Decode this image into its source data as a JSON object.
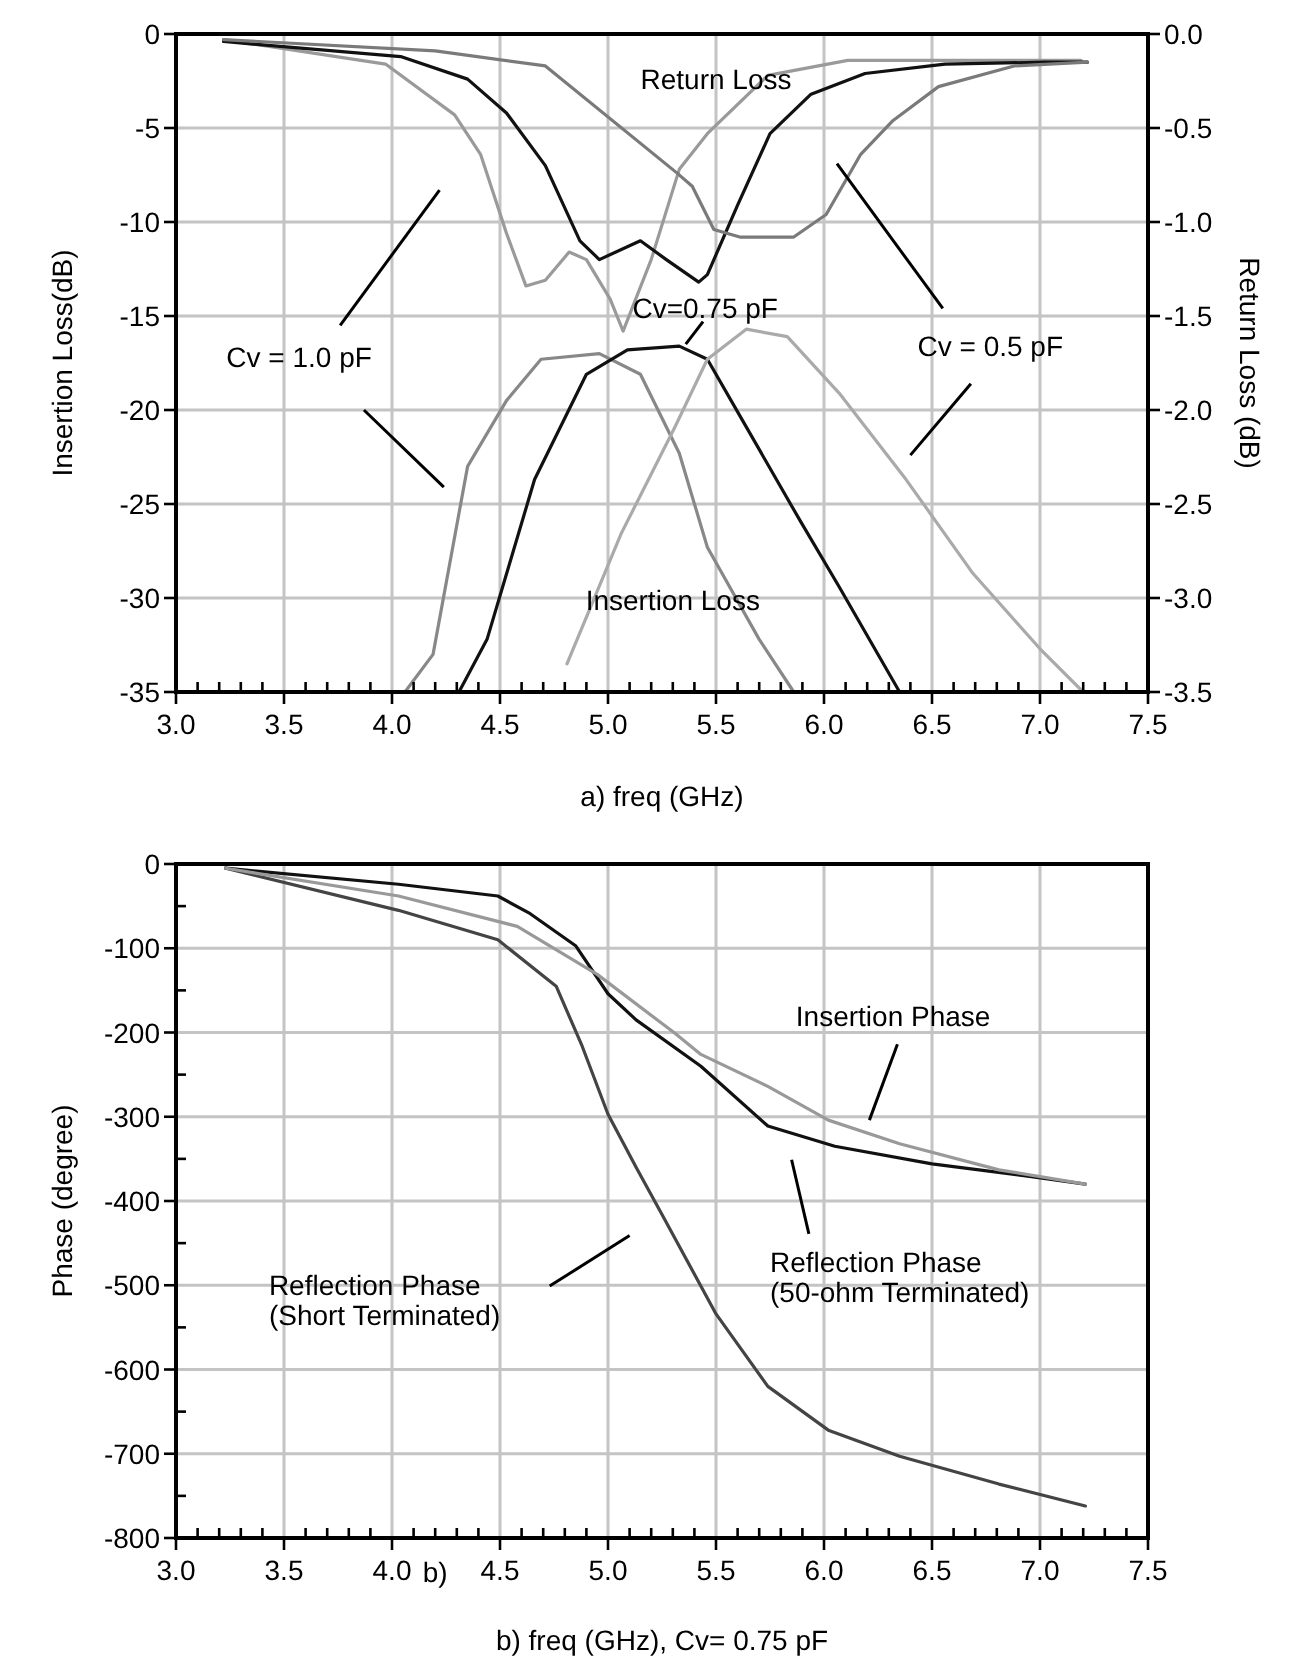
{
  "chart_data": [
    {
      "type": "line",
      "xlabel": "a) freq (GHz)",
      "ylabel": "Insertion Loss(dB)",
      "y2label": "Return Loss (dB)",
      "grid": true,
      "xlim": [
        3,
        7.5
      ],
      "xticks": [
        {
          "value": 3,
          "label": "3.0"
        },
        {
          "value": 3.1,
          "label": null
        },
        {
          "value": 3.2,
          "label": null
        },
        {
          "value": 3.3,
          "label": null
        },
        {
          "value": 3.4,
          "label": null
        },
        {
          "value": 3.5,
          "label": "3.5"
        },
        {
          "value": 3.6,
          "label": null
        },
        {
          "value": 3.7,
          "label": null
        },
        {
          "value": 3.8,
          "label": null
        },
        {
          "value": 3.9,
          "label": null
        },
        {
          "value": 4,
          "label": "4.0"
        },
        {
          "value": 4.1,
          "label": null
        },
        {
          "value": 4.2,
          "label": null
        },
        {
          "value": 4.3,
          "label": null
        },
        {
          "value": 4.4,
          "label": null
        },
        {
          "value": 4.5,
          "label": "4.5"
        },
        {
          "value": 4.6,
          "label": null
        },
        {
          "value": 4.7,
          "label": null
        },
        {
          "value": 4.8,
          "label": null
        },
        {
          "value": 4.9,
          "label": null
        },
        {
          "value": 5,
          "label": "5.0"
        },
        {
          "value": 5.1,
          "label": null
        },
        {
          "value": 5.2,
          "label": null
        },
        {
          "value": 5.3,
          "label": null
        },
        {
          "value": 5.4,
          "label": null
        },
        {
          "value": 5.5,
          "label": "5.5"
        },
        {
          "value": 5.6,
          "label": null
        },
        {
          "value": 5.7,
          "label": null
        },
        {
          "value": 5.8,
          "label": null
        },
        {
          "value": 5.9,
          "label": null
        },
        {
          "value": 6,
          "label": "6.0"
        },
        {
          "value": 6.1,
          "label": null
        },
        {
          "value": 6.2,
          "label": null
        },
        {
          "value": 6.3,
          "label": null
        },
        {
          "value": 6.4,
          "label": null
        },
        {
          "value": 6.5,
          "label": "6.5"
        },
        {
          "value": 6.6,
          "label": null
        },
        {
          "value": 6.7,
          "label": null
        },
        {
          "value": 6.8,
          "label": null
        },
        {
          "value": 6.9,
          "label": null
        },
        {
          "value": 7,
          "label": "7.0"
        },
        {
          "value": 7.1,
          "label": null
        },
        {
          "value": 7.2,
          "label": null
        },
        {
          "value": 7.3,
          "label": null
        },
        {
          "value": 7.4,
          "label": null
        },
        {
          "value": 7.5,
          "label": "7.5"
        }
      ],
      "ylim": [
        -35,
        0
      ],
      "yticks": [
        0,
        -5,
        -10,
        -15,
        -20,
        -25,
        -30,
        -35
      ],
      "y2lim": [
        -3.5,
        0
      ],
      "y2ticks": [
        {
          "value": 0,
          "label": "0.0"
        },
        {
          "value": -0.5,
          "label": "-0.5"
        },
        {
          "value": -1,
          "label": "-1.0"
        },
        {
          "value": -1.5,
          "label": "-1.5"
        },
        {
          "value": -2,
          "label": "-2.0"
        },
        {
          "value": -2.5,
          "label": "-2.5"
        },
        {
          "value": -3,
          "label": "-3.0"
        },
        {
          "value": -3.5,
          "label": "-3.5"
        }
      ],
      "annotations": [
        "Return Loss",
        "Cv=0.75 pF",
        "Cv = 1.0 pF",
        "Cv = 0.5 pF",
        "Insertion Loss"
      ],
      "series": [
        {
          "color": "#888888",
          "x": [
            4.06,
            4.19,
            4.35,
            4.53,
            4.69,
            4.96,
            5.15,
            5.33,
            5.46,
            5.7,
            5.86
          ],
          "values": [
            -35,
            -33,
            -23,
            -19.5,
            -17.3,
            -17,
            -18.1,
            -22.3,
            -27.3,
            -32.2,
            -35
          ]
        },
        {
          "color": "#111111",
          "x": [
            4.31,
            4.44,
            4.66,
            4.9,
            5.09,
            5.33,
            5.46,
            5.64,
            5.89,
            6.07,
            6.35
          ],
          "values": [
            -35,
            -32.2,
            -23.7,
            -18.1,
            -16.8,
            -16.6,
            -17.3,
            -20.9,
            -25.9,
            -29.4,
            -35
          ]
        },
        {
          "color": "#aaaaaa",
          "x": [
            4.81,
            5.06,
            5.31,
            5.46,
            5.64,
            5.83,
            6.07,
            6.38,
            6.69,
            7,
            7.2
          ],
          "values": [
            -33.5,
            -26.6,
            -20.9,
            -17.3,
            -15.7,
            -16.1,
            -19.1,
            -23.7,
            -28.7,
            -32.7,
            -35
          ]
        },
        {
          "axis": "y2",
          "color": "#9a9a9a",
          "x": [
            3.22,
            3.97,
            4.29,
            4.41,
            4.53,
            4.62,
            4.71,
            4.82,
            4.9,
            5.01,
            5.07,
            5.2,
            5.33,
            5.46,
            5.74,
            6.11,
            7.19
          ],
          "values": [
            -0.03,
            -0.16,
            -0.43,
            -0.64,
            -1.06,
            -1.34,
            -1.31,
            -1.16,
            -1.2,
            -1.41,
            -1.58,
            -1.2,
            -0.72,
            -0.53,
            -0.22,
            -0.14,
            -0.14
          ]
        },
        {
          "axis": "y2",
          "color": "#111111",
          "x": [
            3.22,
            4.04,
            4.35,
            4.53,
            4.71,
            4.87,
            4.96,
            5.15,
            5.27,
            5.42,
            5.46,
            5.6,
            5.75,
            5.94,
            6.19,
            6.56,
            7.02,
            7.22
          ],
          "values": [
            -0.04,
            -0.12,
            -0.24,
            -0.42,
            -0.7,
            -1.1,
            -1.2,
            -1.1,
            -1.2,
            -1.32,
            -1.28,
            -0.91,
            -0.53,
            -0.32,
            -0.21,
            -0.16,
            -0.15,
            -0.15
          ]
        },
        {
          "axis": "y2",
          "color": "#7a7a7a",
          "x": [
            3.22,
            4.2,
            4.71,
            5.32,
            5.39,
            5.49,
            5.61,
            5.86,
            6.01,
            6.17,
            6.32,
            6.53,
            6.88,
            7.22
          ],
          "values": [
            -0.03,
            -0.09,
            -0.17,
            -0.74,
            -0.81,
            -1.04,
            -1.08,
            -1.08,
            -0.96,
            -0.64,
            -0.46,
            -0.28,
            -0.17,
            -0.15
          ]
        }
      ]
    },
    {
      "type": "line",
      "xlabel": "b) freq (GHz), Cv= 0.75 pF",
      "ylabel": "Phase (degree)",
      "grid": true,
      "xlim": [
        3,
        7.5
      ],
      "xticks": [
        {
          "value": 3,
          "label": "3.0"
        },
        {
          "value": 3.1,
          "label": null
        },
        {
          "value": 3.2,
          "label": null
        },
        {
          "value": 3.3,
          "label": null
        },
        {
          "value": 3.4,
          "label": null
        },
        {
          "value": 3.5,
          "label": "3.5"
        },
        {
          "value": 3.6,
          "label": null
        },
        {
          "value": 3.7,
          "label": null
        },
        {
          "value": 3.8,
          "label": null
        },
        {
          "value": 3.9,
          "label": null
        },
        {
          "value": 4,
          "label": "4.0"
        },
        {
          "value": 4.1,
          "label": null
        },
        {
          "value": 4.2,
          "label": null
        },
        {
          "value": 4.3,
          "label": null
        },
        {
          "value": 4.4,
          "label": null
        },
        {
          "value": 4.5,
          "label": "4.5"
        },
        {
          "value": 4.6,
          "label": null
        },
        {
          "value": 4.7,
          "label": null
        },
        {
          "value": 4.8,
          "label": null
        },
        {
          "value": 4.9,
          "label": null
        },
        {
          "value": 5,
          "label": "5.0"
        },
        {
          "value": 5.1,
          "label": null
        },
        {
          "value": 5.2,
          "label": null
        },
        {
          "value": 5.3,
          "label": null
        },
        {
          "value": 5.4,
          "label": null
        },
        {
          "value": 5.5,
          "label": "5.5"
        },
        {
          "value": 5.6,
          "label": null
        },
        {
          "value": 5.7,
          "label": null
        },
        {
          "value": 5.8,
          "label": null
        },
        {
          "value": 5.9,
          "label": null
        },
        {
          "value": 6,
          "label": "6.0"
        },
        {
          "value": 6.1,
          "label": null
        },
        {
          "value": 6.2,
          "label": null
        },
        {
          "value": 6.3,
          "label": null
        },
        {
          "value": 6.4,
          "label": null
        },
        {
          "value": 6.5,
          "label": "6.5"
        },
        {
          "value": 6.6,
          "label": null
        },
        {
          "value": 6.7,
          "label": null
        },
        {
          "value": 6.8,
          "label": null
        },
        {
          "value": 6.9,
          "label": null
        },
        {
          "value": 7,
          "label": "7.0"
        },
        {
          "value": 7.1,
          "label": null
        },
        {
          "value": 7.2,
          "label": null
        },
        {
          "value": 7.3,
          "label": null
        },
        {
          "value": 7.4,
          "label": null
        },
        {
          "value": 7.5,
          "label": "7.5"
        }
      ],
      "ylim": [
        -800,
        0
      ],
      "yticks": [
        0,
        {
          "value": -50,
          "label": null
        },
        -100,
        {
          "value": -150,
          "label": null
        },
        -200,
        {
          "value": -250,
          "label": null
        },
        -300,
        {
          "value": -350,
          "label": null
        },
        -400,
        {
          "value": -450,
          "label": null
        },
        -500,
        {
          "value": -550,
          "label": null
        },
        -600,
        {
          "value": -650,
          "label": null
        },
        -700,
        {
          "value": -750,
          "label": null
        },
        -800
      ],
      "annotations": [
        "Insertion Phase",
        "Reflection Phase\n(Short Terminated)",
        "Reflection Phase\n(50-ohm Terminated)",
        "b)"
      ],
      "series": [
        {
          "color": "#444444",
          "x": [
            3.23,
            4.03,
            4.49,
            4.76,
            4.88,
            5,
            5.13,
            5.25,
            5.5,
            5.74,
            6.02,
            6.35,
            6.81,
            7.21
          ],
          "values": [
            -5,
            -55,
            -90,
            -145,
            -216,
            -297,
            -360,
            -416,
            -534,
            -620,
            -672,
            -703,
            -736,
            -762
          ]
        },
        {
          "color": "#111111",
          "x": [
            3.23,
            4.03,
            4.49,
            4.64,
            4.85,
            5,
            5.13,
            5.43,
            5.74,
            6.05,
            6.5,
            6.96,
            7.21
          ],
          "values": [
            -5,
            -24,
            -38,
            -59,
            -97,
            -154,
            -185,
            -240,
            -311,
            -335,
            -356,
            -371,
            -380
          ]
        },
        {
          "color": "#999999",
          "x": [
            3.23,
            4.03,
            4.58,
            4.95,
            5.31,
            5.43,
            5.74,
            6.02,
            6.35,
            6.81,
            7.21
          ],
          "values": [
            -5,
            -38,
            -74,
            -131,
            -201,
            -226,
            -264,
            -304,
            -332,
            -363,
            -380
          ]
        }
      ]
    }
  ]
}
